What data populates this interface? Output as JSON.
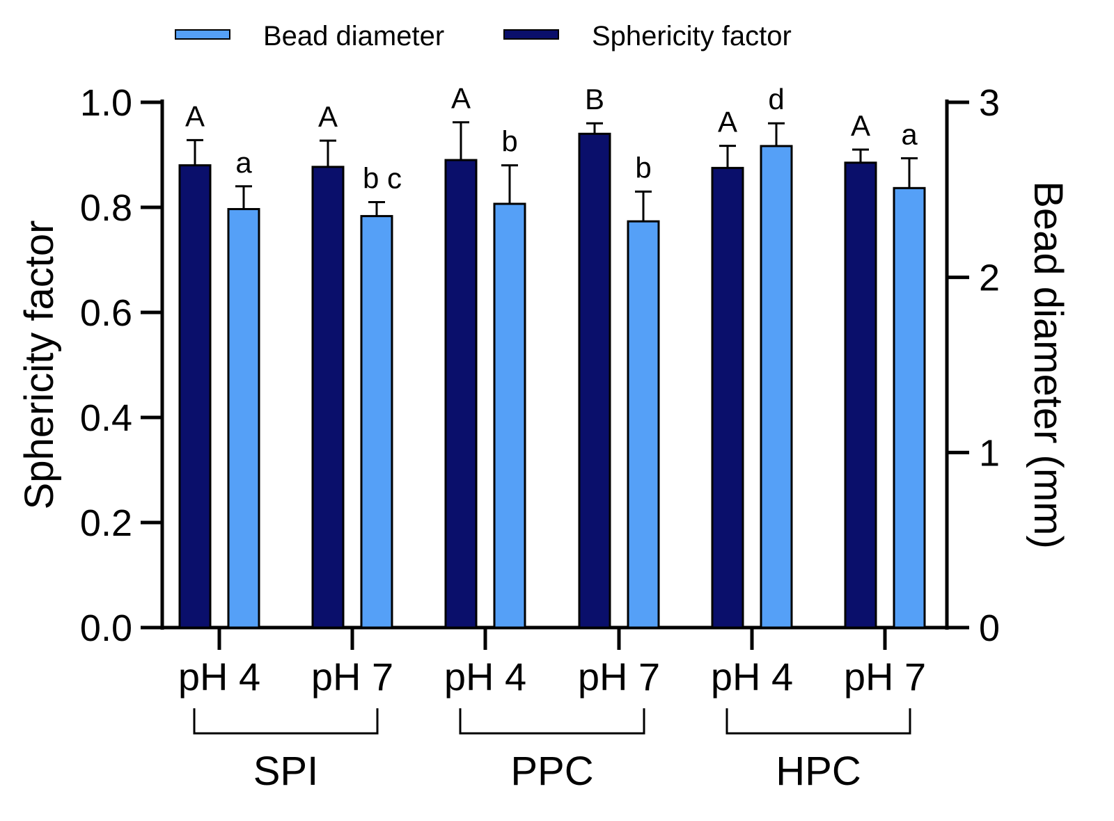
{
  "chart_data": {
    "type": "bar",
    "categories": [
      "pH 4",
      "pH 7",
      "pH 4",
      "pH 7",
      "pH 4",
      "pH 7"
    ],
    "groups": [
      {
        "label": "SPI",
        "span": [
          0,
          1
        ]
      },
      {
        "label": "PPC",
        "span": [
          2,
          3
        ]
      },
      {
        "label": "HPC",
        "span": [
          4,
          5
        ]
      }
    ],
    "series": [
      {
        "name": "Sphericity factor",
        "axis": "left",
        "color": "#0a0f6b",
        "values": [
          0.88,
          0.877,
          0.89,
          0.94,
          0.875,
          0.885
        ],
        "errors": [
          0.048,
          0.05,
          0.072,
          0.02,
          0.042,
          0.025
        ],
        "letters": [
          "A",
          "A",
          "A",
          "B",
          "A",
          "A"
        ]
      },
      {
        "name": "Bead diameter",
        "axis": "right",
        "color": "#55a0f7",
        "values": [
          2.39,
          2.35,
          2.42,
          2.32,
          2.75,
          2.51
        ],
        "errors": [
          0.13,
          0.08,
          0.22,
          0.17,
          0.13,
          0.17
        ],
        "letters": [
          "a",
          "b c",
          "b",
          "b",
          "d",
          "a"
        ]
      }
    ],
    "ylabel": "Sphericity factor",
    "y2label": "Bead diameter (mm)",
    "ylim": [
      0,
      1.0
    ],
    "y2lim": [
      0,
      3
    ],
    "yticks": [
      "0.0",
      "0.2",
      "0.4",
      "0.6",
      "0.8",
      "1.0"
    ],
    "y2ticks": [
      "0",
      "1",
      "2",
      "3"
    ],
    "legend": {
      "position": "top",
      "items": [
        "Bead diameter",
        "Sphericity factor"
      ]
    },
    "grid": false
  }
}
